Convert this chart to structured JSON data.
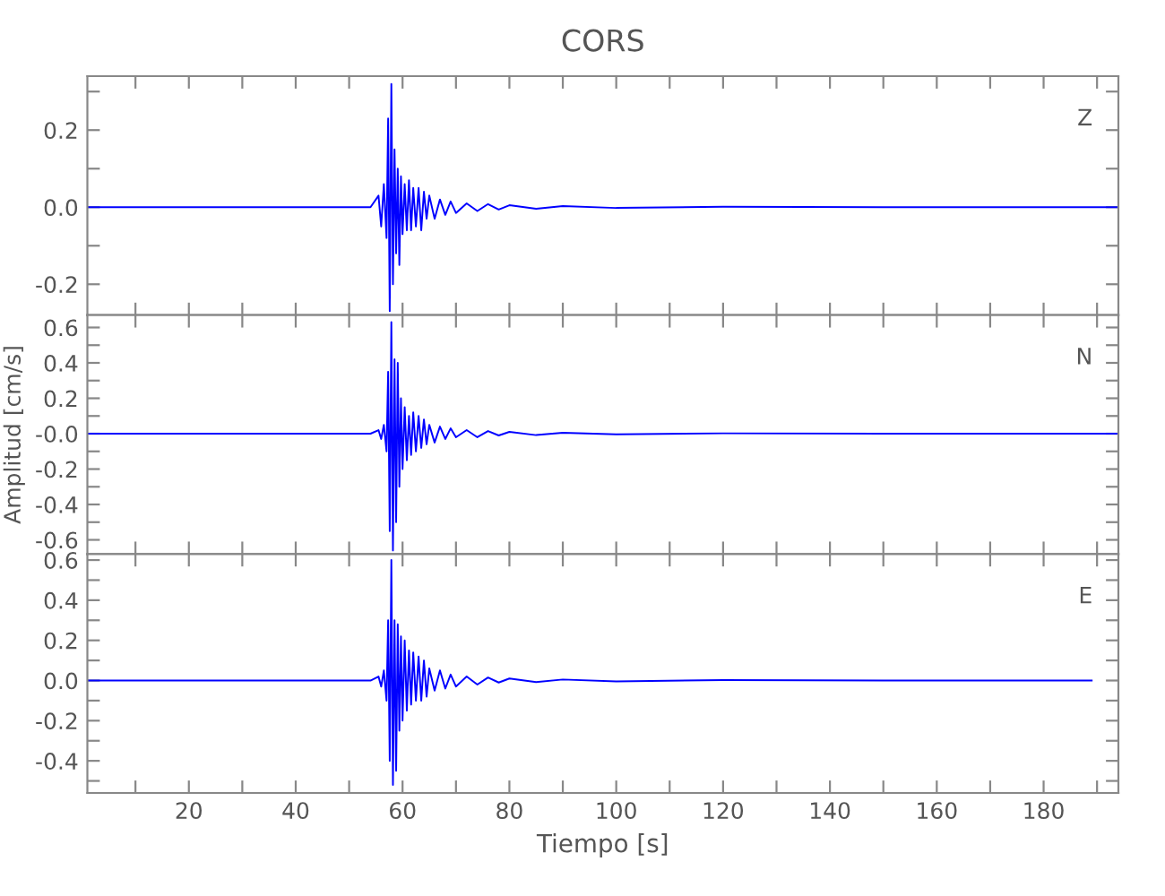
{
  "chart_data": [
    {
      "type": "line",
      "title": "CORS",
      "annotations": [
        "Z"
      ],
      "tick_labels": "y",
      "xlim": [
        1,
        194
      ],
      "ylim": [
        -0.28,
        0.34
      ],
      "xticks": [
        {
          "value": 10,
          "label": null
        },
        {
          "value": 20,
          "label": null
        },
        {
          "value": 30,
          "label": null
        },
        {
          "value": 40,
          "label": null
        },
        {
          "value": 50,
          "label": null
        },
        {
          "value": 60,
          "label": null
        },
        {
          "value": 70,
          "label": null
        },
        {
          "value": 80,
          "label": null
        },
        {
          "value": 90,
          "label": null
        },
        {
          "value": 100,
          "label": null
        },
        {
          "value": 110,
          "label": null
        },
        {
          "value": 120,
          "label": null
        },
        {
          "value": 130,
          "label": null
        },
        {
          "value": 140,
          "label": null
        },
        {
          "value": 150,
          "label": null
        },
        {
          "value": 160,
          "label": null
        },
        {
          "value": 170,
          "label": null
        },
        {
          "value": 180,
          "label": null
        },
        {
          "value": 190,
          "label": null
        }
      ],
      "yticks": [
        {
          "value": -0.2,
          "label": "-0.2"
        },
        {
          "value": -0.1,
          "label": null
        },
        {
          "value": 0.0,
          "label": "0.0"
        },
        {
          "value": 0.1,
          "label": null
        },
        {
          "value": 0.2,
          "label": "0.2"
        },
        {
          "value": 0.3,
          "label": null
        }
      ],
      "series": [
        {
          "color": "#0000ff",
          "x": [
            1,
            20,
            40,
            54,
            55.5,
            56,
            56.5,
            57,
            57.3,
            57.6,
            57.9,
            58.2,
            58.5,
            58.8,
            59.1,
            59.4,
            59.7,
            60,
            60.4,
            60.8,
            61.2,
            61.6,
            62,
            62.5,
            63,
            63.5,
            64,
            64.5,
            65,
            66,
            67,
            68,
            69,
            70,
            72,
            74,
            76,
            78,
            80,
            85,
            90,
            100,
            120,
            150,
            194
          ],
          "values": [
            0,
            0,
            0,
            0,
            0.03,
            -0.05,
            0.06,
            -0.08,
            0.23,
            -0.27,
            0.32,
            -0.2,
            0.15,
            -0.12,
            0.1,
            -0.15,
            0.08,
            -0.07,
            0.06,
            -0.06,
            0.07,
            -0.06,
            0.05,
            -0.05,
            0.05,
            -0.06,
            0.04,
            -0.03,
            0.03,
            -0.03,
            0.02,
            -0.02,
            0.015,
            -0.015,
            0.01,
            -0.01,
            0.008,
            -0.006,
            0.005,
            -0.004,
            0.003,
            -0.002,
            0.001,
            0,
            0
          ]
        }
      ]
    },
    {
      "type": "line",
      "ylabel": "Amplitud [cm/s]",
      "annotations": [
        "N"
      ],
      "tick_labels": "y",
      "xlim": [
        1,
        194
      ],
      "ylim": [
        -0.68,
        0.67
      ],
      "xticks": [
        {
          "value": 10,
          "label": null
        },
        {
          "value": 20,
          "label": null
        },
        {
          "value": 30,
          "label": null
        },
        {
          "value": 40,
          "label": null
        },
        {
          "value": 50,
          "label": null
        },
        {
          "value": 60,
          "label": null
        },
        {
          "value": 70,
          "label": null
        },
        {
          "value": 80,
          "label": null
        },
        {
          "value": 90,
          "label": null
        },
        {
          "value": 100,
          "label": null
        },
        {
          "value": 110,
          "label": null
        },
        {
          "value": 120,
          "label": null
        },
        {
          "value": 130,
          "label": null
        },
        {
          "value": 140,
          "label": null
        },
        {
          "value": 150,
          "label": null
        },
        {
          "value": 160,
          "label": null
        },
        {
          "value": 170,
          "label": null
        },
        {
          "value": 180,
          "label": null
        },
        {
          "value": 190,
          "label": null
        }
      ],
      "yticks": [
        {
          "value": -0.6,
          "label": "-0.6"
        },
        {
          "value": -0.5,
          "label": null
        },
        {
          "value": -0.4,
          "label": "-0.4"
        },
        {
          "value": -0.3,
          "label": null
        },
        {
          "value": -0.2,
          "label": "-0.2"
        },
        {
          "value": -0.1,
          "label": null
        },
        {
          "value": 0.0,
          "label": "-0.0"
        },
        {
          "value": 0.1,
          "label": null
        },
        {
          "value": 0.2,
          "label": "0.2"
        },
        {
          "value": 0.3,
          "label": null
        },
        {
          "value": 0.4,
          "label": "0.4"
        },
        {
          "value": 0.5,
          "label": null
        },
        {
          "value": 0.6,
          "label": "0.6"
        }
      ],
      "series": [
        {
          "color": "#0000ff",
          "x": [
            1,
            20,
            40,
            54,
            55.5,
            56,
            56.5,
            57,
            57.3,
            57.6,
            57.9,
            58.2,
            58.5,
            58.8,
            59.1,
            59.4,
            59.7,
            60,
            60.4,
            60.8,
            61.2,
            61.6,
            62,
            62.5,
            63,
            63.5,
            64,
            64.5,
            65,
            66,
            67,
            68,
            69,
            70,
            72,
            74,
            76,
            78,
            80,
            85,
            90,
            100,
            120,
            150,
            194
          ],
          "values": [
            0,
            0,
            0,
            0,
            0.02,
            -0.03,
            0.05,
            -0.1,
            0.35,
            -0.55,
            0.63,
            -0.66,
            0.42,
            -0.5,
            0.4,
            -0.3,
            0.2,
            -0.2,
            0.15,
            -0.15,
            0.1,
            -0.12,
            0.12,
            -0.1,
            0.1,
            -0.08,
            0.08,
            -0.06,
            0.05,
            -0.05,
            0.04,
            -0.03,
            0.03,
            -0.02,
            0.02,
            -0.02,
            0.015,
            -0.01,
            0.01,
            -0.008,
            0.005,
            -0.004,
            0.002,
            0,
            0
          ]
        }
      ]
    },
    {
      "type": "line",
      "xlabel": "Tiempo [s]",
      "annotations": [
        "E"
      ],
      "xlim": [
        1,
        194
      ],
      "ylim": [
        -0.56,
        0.63
      ],
      "xticks": [
        {
          "value": 10,
          "label": null
        },
        20,
        {
          "value": 30,
          "label": null
        },
        40,
        {
          "value": 50,
          "label": null
        },
        60,
        {
          "value": 70,
          "label": null
        },
        80,
        {
          "value": 90,
          "label": null
        },
        100,
        {
          "value": 110,
          "label": null
        },
        120,
        {
          "value": 130,
          "label": null
        },
        140,
        {
          "value": 150,
          "label": null
        },
        160,
        {
          "value": 170,
          "label": null
        },
        180,
        {
          "value": 190,
          "label": null
        }
      ],
      "yticks": [
        {
          "value": -0.5,
          "label": null
        },
        {
          "value": -0.4,
          "label": "-0.4"
        },
        {
          "value": -0.3,
          "label": null
        },
        {
          "value": -0.2,
          "label": "-0.2"
        },
        {
          "value": -0.1,
          "label": null
        },
        {
          "value": 0.0,
          "label": "0.0"
        },
        {
          "value": 0.1,
          "label": null
        },
        {
          "value": 0.2,
          "label": "0.2"
        },
        {
          "value": 0.3,
          "label": null
        },
        {
          "value": 0.4,
          "label": "0.4"
        },
        {
          "value": 0.5,
          "label": null
        },
        {
          "value": 0.6,
          "label": "0.6"
        }
      ],
      "series": [
        {
          "color": "#0000ff",
          "x": [
            1,
            20,
            40,
            54,
            55.5,
            56,
            56.5,
            57,
            57.3,
            57.6,
            57.9,
            58.2,
            58.5,
            58.8,
            59.1,
            59.4,
            59.7,
            60,
            60.4,
            60.8,
            61.2,
            61.6,
            62,
            62.5,
            63,
            63.5,
            64,
            64.5,
            65,
            66,
            67,
            68,
            69,
            70,
            72,
            74,
            76,
            78,
            80,
            85,
            90,
            100,
            120,
            150,
            189
          ],
          "values": [
            0,
            0,
            0,
            0,
            0.02,
            -0.03,
            0.05,
            -0.1,
            0.3,
            -0.4,
            0.6,
            -0.52,
            0.3,
            -0.45,
            0.28,
            -0.25,
            0.22,
            -0.2,
            0.2,
            -0.15,
            0.15,
            -0.12,
            0.14,
            -0.1,
            0.12,
            -0.1,
            0.1,
            -0.08,
            0.06,
            -0.05,
            0.05,
            -0.04,
            0.03,
            -0.03,
            0.02,
            -0.02,
            0.015,
            -0.01,
            0.01,
            -0.008,
            0.005,
            -0.004,
            0.002,
            0,
            0
          ]
        }
      ]
    }
  ]
}
